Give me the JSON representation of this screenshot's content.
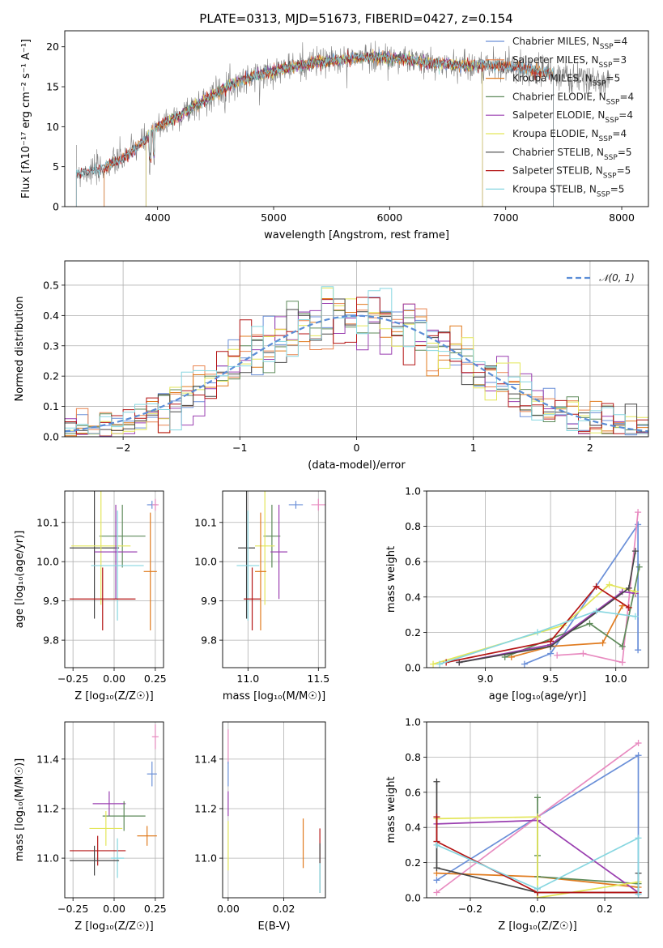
{
  "title": "PLATE=0313, MJD=51673, FIBERID=0427, z=0.154",
  "colors": {
    "Chabrier MILES": "#6a8fd8",
    "Salpeter MILES": "#e9844f",
    "Kroupa MILES": "#e07b1f",
    "Chabrier ELODIE": "#5e8a5a",
    "Salpeter ELODIE": "#9a3fb0",
    "Kroupa ELODIE": "#e3e659",
    "Chabrier STELIB": "#454545",
    "Salpeter STELIB": "#b41515",
    "Kroupa STELIB": "#86d6e0",
    "data": "#808080",
    "pink": "#e88bc0",
    "grid": "#b0b0b0"
  },
  "chart_data": [
    {
      "panel": "spectrum",
      "type": "line",
      "xlabel": "wavelength [Angstrom, rest frame]",
      "ylabel": "Flux [fλ10⁻¹⁷ erg cm⁻² s⁻¹ A⁻¹]",
      "xlim": [
        3200,
        8230
      ],
      "ylim": [
        0,
        22
      ],
      "xticks": [
        "4000",
        "5000",
        "6000",
        "7000",
        "8000"
      ],
      "yticks": [
        "0",
        "5",
        "10",
        "15",
        "20"
      ],
      "legend_position": "upper-right",
      "legend": [
        {
          "label": "Chabrier MILES, N",
          "sub": "SSP",
          "suffix": "=4",
          "series": "Chabrier MILES"
        },
        {
          "label": "Salpeter MILES, N",
          "sub": "SSP",
          "suffix": "=3",
          "series": "Salpeter MILES"
        },
        {
          "label": "Kroupa MILES, N",
          "sub": "SSP",
          "suffix": "=5",
          "series": "Kroupa MILES"
        },
        {
          "label": "Chabrier ELODIE, N",
          "sub": "SSP",
          "suffix": "=4",
          "series": "Chabrier ELODIE"
        },
        {
          "label": "Salpeter ELODIE, N",
          "sub": "SSP",
          "suffix": "=4",
          "series": "Salpeter ELODIE"
        },
        {
          "label": "Kroupa ELODIE, N",
          "sub": "SSP",
          "suffix": "=4",
          "series": "Kroupa ELODIE"
        },
        {
          "label": "Chabrier STELIB, N",
          "sub": "SSP",
          "suffix": "=5",
          "series": "Chabrier STELIB"
        },
        {
          "label": "Salpeter STELIB, N",
          "sub": "SSP",
          "suffix": "=5",
          "series": "Salpeter STELIB"
        },
        {
          "label": "Kroupa STELIB, N",
          "sub": "SSP",
          "suffix": "=5",
          "series": "Kroupa STELIB"
        }
      ],
      "continuum": {
        "x": [
          3300,
          3500,
          3700,
          3900,
          4000,
          4200,
          4400,
          4600,
          4800,
          5000,
          5200,
          5400,
          5600,
          5800,
          6000,
          6200,
          6400,
          6600,
          6800,
          7000,
          7200,
          7400,
          7600,
          7800
        ],
        "y": [
          4.2,
          4.6,
          6.0,
          8.5,
          10.0,
          11.5,
          13.3,
          15.0,
          16.2,
          17.0,
          17.6,
          18.1,
          18.4,
          18.7,
          18.6,
          18.3,
          17.9,
          17.7,
          17.6,
          17.6,
          17.2,
          16.6,
          16.0,
          15.6
        ]
      },
      "model_ranges": {
        "MILES": [
          3540,
          7410
        ],
        "ELODIE": [
          3900,
          6800
        ],
        "STELIB": [
          3300,
          7410
        ]
      }
    },
    {
      "panel": "residuals",
      "type": "line",
      "xlabel": "(data-model)/error",
      "ylabel": "Normed distribution",
      "xlim": [
        -2.5,
        2.5
      ],
      "ylim": [
        0,
        0.58
      ],
      "xticks": [
        "−2",
        "−1",
        "0",
        "1",
        "2"
      ],
      "yticks": [
        "0.0",
        "0.1",
        "0.2",
        "0.3",
        "0.4",
        "0.5"
      ],
      "legend": "𝒩(0, 1)",
      "legend_position": "upper-right",
      "bin_width": 0.1,
      "reference": "standard normal N(0,1)"
    },
    {
      "panel": "age_vs_Z",
      "type": "scatter",
      "xlabel": "Z [log₁₀(Z/Z☉)]",
      "ylabel": "age  [log₁₀(age/yr)]",
      "xlim": [
        -0.3,
        0.3
      ],
      "ylim": [
        9.73,
        10.18
      ],
      "xticks": [
        "−0.25",
        "0.00",
        "0.25"
      ],
      "yticks": [
        "9.8",
        "9.9",
        "10.0",
        "10.1"
      ],
      "points": [
        {
          "series": "Chabrier MILES",
          "x": 0.23,
          "y": 10.145,
          "xerr": 0.03,
          "yerr": 0.01
        },
        {
          "series": "pink",
          "x": 0.25,
          "y": 10.145,
          "xerr": 0.02,
          "yerr": 0.015
        },
        {
          "series": "Chabrier ELODIE",
          "x": 0.05,
          "y": 10.065,
          "xerr": 0.14,
          "yerr": 0.08
        },
        {
          "series": "Chabrier STELIB",
          "x": -0.12,
          "y": 10.035,
          "xerr": 0.15,
          "yerr": 0.18
        },
        {
          "series": "Kroupa ELODIE",
          "x": -0.08,
          "y": 10.04,
          "xerr": 0.18,
          "yerr": 0.15
        },
        {
          "series": "Salpeter ELODIE",
          "x": 0.01,
          "y": 10.025,
          "xerr": 0.13,
          "yerr": 0.12
        },
        {
          "series": "Kroupa STELIB",
          "x": 0.02,
          "y": 9.99,
          "xerr": 0.16,
          "yerr": 0.14
        },
        {
          "series": "Kroupa MILES",
          "x": 0.22,
          "y": 9.975,
          "xerr": 0.04,
          "yerr": 0.15
        },
        {
          "series": "Salpeter STELIB",
          "x": -0.07,
          "y": 9.905,
          "xerr": 0.2,
          "yerr": 0.08
        }
      ]
    },
    {
      "panel": "age_vs_mass",
      "type": "scatter",
      "xlabel": "mass [log₁₀(M/M☉)]",
      "ylabel": "",
      "xlim": [
        10.82,
        11.55
      ],
      "ylim": [
        9.73,
        10.18
      ],
      "xticks": [
        "11.0",
        "11.5"
      ],
      "yticks": [
        "9.8",
        "9.9",
        "10.0",
        "10.1"
      ],
      "points": [
        {
          "series": "Chabrier MILES",
          "x": 11.34,
          "y": 10.145,
          "xerr": 0.05,
          "yerr": 0.01
        },
        {
          "series": "pink",
          "x": 11.5,
          "y": 10.145,
          "xerr": 0.05,
          "yerr": 0.015
        },
        {
          "series": "Chabrier ELODIE",
          "x": 11.17,
          "y": 10.065,
          "xerr": 0.06,
          "yerr": 0.08
        },
        {
          "series": "Chabrier STELIB",
          "x": 10.99,
          "y": 10.035,
          "xerr": 0.06,
          "yerr": 0.18
        },
        {
          "series": "Kroupa ELODIE",
          "x": 11.12,
          "y": 10.04,
          "xerr": 0.07,
          "yerr": 0.15
        },
        {
          "series": "Salpeter ELODIE",
          "x": 11.22,
          "y": 10.025,
          "xerr": 0.06,
          "yerr": 0.12
        },
        {
          "series": "Kroupa STELIB",
          "x": 11.0,
          "y": 9.99,
          "xerr": 0.08,
          "yerr": 0.14
        },
        {
          "series": "Kroupa MILES",
          "x": 11.09,
          "y": 9.975,
          "xerr": 0.04,
          "yerr": 0.15
        },
        {
          "series": "Salpeter STELIB",
          "x": 11.03,
          "y": 9.905,
          "xerr": 0.06,
          "yerr": 0.08
        }
      ]
    },
    {
      "panel": "massweight_vs_age",
      "type": "line",
      "xlabel": "age  [log₁₀(age/yr)]",
      "ylabel": "mass weight",
      "xlim": [
        8.55,
        10.25
      ],
      "ylim": [
        0,
        1.0
      ],
      "xticks": [
        "9.0",
        "9.5",
        "10.0"
      ],
      "yticks": [
        "0.0",
        "0.2",
        "0.4",
        "0.6",
        "0.8",
        "1.0"
      ],
      "series": [
        {
          "name": "Chabrier MILES",
          "x": [
            9.3,
            9.5,
            10.17,
            10.17
          ],
          "y": [
            0.02,
            0.08,
            0.81,
            0.1
          ]
        },
        {
          "name": "pink",
          "x": [
            9.55,
            9.75,
            10.05,
            10.17
          ],
          "y": [
            0.07,
            0.08,
            0.03,
            0.88
          ]
        },
        {
          "name": "Kroupa MILES",
          "x": [
            9.2,
            9.5,
            9.9,
            10.05
          ],
          "y": [
            0.06,
            0.12,
            0.14,
            0.35
          ]
        },
        {
          "name": "Chabrier ELODIE",
          "x": [
            9.15,
            9.8,
            10.05,
            10.18
          ],
          "y": [
            0.06,
            0.25,
            0.12,
            0.57
          ]
        },
        {
          "name": "Salpeter ELODIE",
          "x": [
            8.8,
            9.5,
            10.05,
            10.15
          ],
          "y": [
            0.03,
            0.13,
            0.43,
            0.42
          ]
        },
        {
          "name": "Kroupa ELODIE",
          "x": [
            8.6,
            9.6,
            9.95,
            10.15
          ],
          "y": [
            0.02,
            0.24,
            0.47,
            0.43
          ]
        },
        {
          "name": "Chabrier STELIB",
          "x": [
            8.8,
            9.5,
            10.1,
            10.15
          ],
          "y": [
            0.03,
            0.12,
            0.45,
            0.66
          ]
        },
        {
          "name": "Salpeter STELIB",
          "x": [
            8.7,
            9.5,
            9.85,
            10.1
          ],
          "y": [
            0.03,
            0.15,
            0.46,
            0.34
          ]
        },
        {
          "name": "Kroupa STELIB",
          "x": [
            8.65,
            9.4,
            9.85,
            10.15
          ],
          "y": [
            0.02,
            0.2,
            0.32,
            0.29
          ]
        }
      ]
    },
    {
      "panel": "mass_vs_Z",
      "type": "scatter",
      "xlabel": "Z [log₁₀(Z/Z☉)]",
      "ylabel": "mass [log₁₀(M/M☉)]",
      "xlim": [
        -0.3,
        0.3
      ],
      "ylim": [
        10.84,
        11.55
      ],
      "xticks": [
        "−0.25",
        "0.00",
        "0.25"
      ],
      "yticks": [
        "11.0",
        "11.2",
        "11.4"
      ],
      "points": [
        {
          "series": "pink",
          "x": 0.25,
          "y": 11.49,
          "xerr": 0.02,
          "yerr": 0.05
        },
        {
          "series": "Chabrier MILES",
          "x": 0.23,
          "y": 11.34,
          "xerr": 0.03,
          "yerr": 0.05
        },
        {
          "series": "Salpeter ELODIE",
          "x": -0.03,
          "y": 11.22,
          "xerr": 0.1,
          "yerr": 0.05
        },
        {
          "series": "Chabrier ELODIE",
          "x": 0.06,
          "y": 11.17,
          "xerr": 0.13,
          "yerr": 0.06
        },
        {
          "series": "Kroupa ELODIE",
          "x": -0.05,
          "y": 11.12,
          "xerr": 0.1,
          "yerr": 0.07
        },
        {
          "series": "Kroupa MILES",
          "x": 0.2,
          "y": 11.09,
          "xerr": 0.06,
          "yerr": 0.04
        },
        {
          "series": "Salpeter STELIB",
          "x": -0.1,
          "y": 11.03,
          "xerr": 0.17,
          "yerr": 0.06
        },
        {
          "series": "Kroupa STELIB",
          "x": 0.02,
          "y": 11.0,
          "xerr": 0.04,
          "yerr": 0.08
        },
        {
          "series": "Chabrier STELIB",
          "x": -0.12,
          "y": 10.99,
          "xerr": 0.15,
          "yerr": 0.06
        }
      ]
    },
    {
      "panel": "mass_vs_EBV",
      "type": "scatter",
      "xlabel": "E(B-V)",
      "ylabel": "",
      "xlim": [
        -0.002,
        0.035
      ],
      "ylim": [
        10.84,
        11.55
      ],
      "xticks": [
        "0.00",
        "0.02"
      ],
      "yticks": [
        "11.0",
        "11.2",
        "11.4"
      ],
      "points": [
        {
          "series": "pink",
          "x": 0.0,
          "y": 11.45,
          "xerr": 0,
          "yerr": 0.07
        },
        {
          "series": "Chabrier MILES",
          "x": 0.0,
          "y": 11.34,
          "xerr": 0,
          "yerr": 0.05
        },
        {
          "series": "Salpeter ELODIE",
          "x": 0.0,
          "y": 11.22,
          "xerr": 0,
          "yerr": 0.05
        },
        {
          "series": "Kroupa ELODIE",
          "x": 0.0,
          "y": 11.05,
          "xerr": 0,
          "yerr": 0.1
        },
        {
          "series": "Kroupa MILES",
          "x": 0.027,
          "y": 11.06,
          "xerr": 0,
          "yerr": 0.1
        },
        {
          "series": "Salpeter STELIB",
          "x": 0.033,
          "y": 11.05,
          "xerr": 0,
          "yerr": 0.07
        },
        {
          "series": "Chabrier STELIB",
          "x": 0.033,
          "y": 10.96,
          "xerr": 0,
          "yerr": 0.1
        },
        {
          "series": "Kroupa STELIB",
          "x": 0.033,
          "y": 10.92,
          "xerr": 0,
          "yerr": 0.06
        }
      ]
    },
    {
      "panel": "massweight_vs_Z",
      "type": "line",
      "xlabel": "Z [log₁₀(Z/Z☉)]",
      "ylabel": "mass weight",
      "xlim": [
        -0.33,
        0.33
      ],
      "ylim": [
        0,
        1.0
      ],
      "xticks": [
        "−0.2",
        "0.0",
        "0.2"
      ],
      "yticks": [
        "0.0",
        "0.2",
        "0.4",
        "0.6",
        "0.8",
        "1.0"
      ],
      "series": [
        {
          "name": "Chabrier MILES",
          "x": [
            -0.3,
            0.0,
            0.3,
            0.3
          ],
          "y": [
            0.1,
            0.46,
            0.81,
            0.02
          ]
        },
        {
          "name": "pink",
          "x": [
            -0.3,
            0.0,
            0.3
          ],
          "y": [
            0.03,
            0.46,
            0.88
          ]
        },
        {
          "name": "Kroupa MILES",
          "x": [
            -0.3,
            0.0,
            0.3
          ],
          "y": [
            0.14,
            0.12,
            0.06
          ]
        },
        {
          "name": "Chabrier ELODIE",
          "x": [
            0.0,
            0.0,
            0.0,
            0.3
          ],
          "y": [
            0.57,
            0.24,
            0.12,
            0.08
          ]
        },
        {
          "name": "Salpeter ELODIE",
          "x": [
            -0.3,
            0.0,
            0.3
          ],
          "y": [
            0.42,
            0.44,
            0.03
          ]
        },
        {
          "name": "Kroupa ELODIE",
          "x": [
            -0.3,
            0.0,
            0.0,
            0.3
          ],
          "y": [
            0.45,
            0.46,
            0.0,
            0.09
          ]
        },
        {
          "name": "Chabrier STELIB",
          "x": [
            -0.3,
            -0.3,
            0.0,
            0.3,
            0.3
          ],
          "y": [
            0.66,
            0.17,
            0.03,
            0.03,
            0.14
          ]
        },
        {
          "name": "Salpeter STELIB",
          "x": [
            -0.3,
            -0.3,
            0.0,
            0.3
          ],
          "y": [
            0.46,
            0.32,
            0.03,
            0.03
          ]
        },
        {
          "name": "Kroupa STELIB",
          "x": [
            -0.3,
            0.0,
            0.3,
            0.3
          ],
          "y": [
            0.3,
            0.05,
            0.34,
            0.02
          ]
        }
      ]
    }
  ]
}
